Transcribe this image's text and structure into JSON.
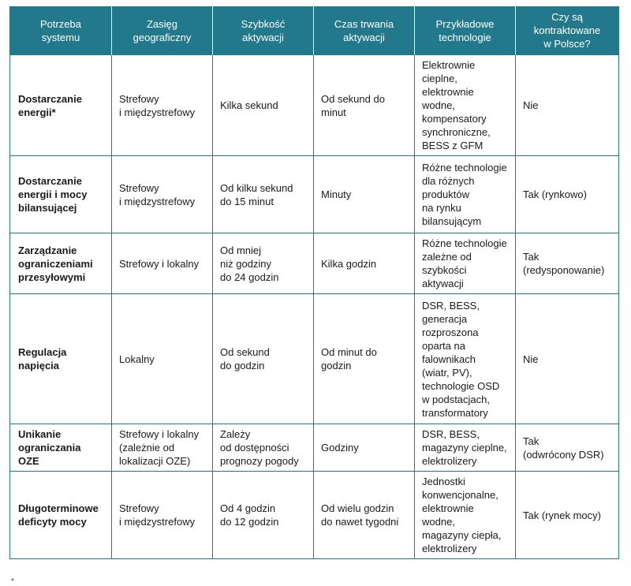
{
  "headers": [
    "Potrzeba\nsystemu",
    "Zasięg\ngeograficzny",
    "Szybkość\naktywacji",
    "Czas trwania\naktywacji",
    "Przykładowe\ntechnologie",
    "Czy są\nkontraktowane\nw Polsce?"
  ],
  "rows": [
    {
      "need": "Dostarczanie\nenergii*",
      "range": "Strefowy\ni międzystrefowy",
      "speed": "Kilka sekund",
      "duration": "Od sekund do\nminut",
      "tech": "Elektrownie\ncieplne,\nelektrownie\nwodne,\nkompensatory\nsynchroniczne,\nBESS z GFM",
      "contracted": "Nie"
    },
    {
      "need": "Dostarczanie\nenergii i mocy\nbilansującej",
      "range": "Strefowy\ni międzystrefowy",
      "speed": "Od kilku sekund\ndo 15 minut",
      "duration": "Minuty",
      "tech": "Różne technologie\ndla różnych\nproduktów\nna rynku\nbilansującym",
      "contracted": "Tak (rynkowo)"
    },
    {
      "need": "Zarządzanie\nograniczeniami\nprzesyłowymi",
      "range": "Strefowy i lokalny",
      "speed": "Od mniej\nniż godziny\ndo 24 godzin",
      "duration": "Kilka godzin",
      "tech": "Różne technologie\nzależne od\nszybkości\naktywacji",
      "contracted": "Tak\n(redysponowanie)"
    },
    {
      "need": "Regulacja\nnapięcia",
      "range": "Lokalny",
      "speed": "Od sekund\ndo godzin",
      "duration": "Od minut do\ngodzin",
      "tech": "DSR, BESS,\ngeneracja\nrozproszona\noparta na\nfalownikach\n(wiatr, PV),\ntechnologie OSD\nw podstacjach,\ntransformatory",
      "contracted": "Nie"
    },
    {
      "need": "Unikanie\nograniczania OZE",
      "range": "Strefowy i lokalny\n(zależnie od\nlokalizacji OZE)",
      "speed": "Zależy\nod dostępności\nprognozy pogody",
      "duration": "Godziny",
      "tech": "DSR, BESS,\nmagazyny cieplne,\nelektrolizery",
      "contracted": "Tak\n(odwrócony DSR)"
    },
    {
      "need": "Długoterminowe\ndeficyty mocy",
      "range": "Strefowy\ni międzystrefowy",
      "speed": "Od 4 godzin\ndo 12 godzin",
      "duration": "Od wielu godzin\ndo nawet tygodni",
      "tech": "Jednostki\nkonwencjonalne,\nelektrownie\nwodne,\nmagazyny ciepła,\nelektrolizery",
      "contracted": "Tak (rynek mocy)"
    }
  ],
  "footnote": "*"
}
